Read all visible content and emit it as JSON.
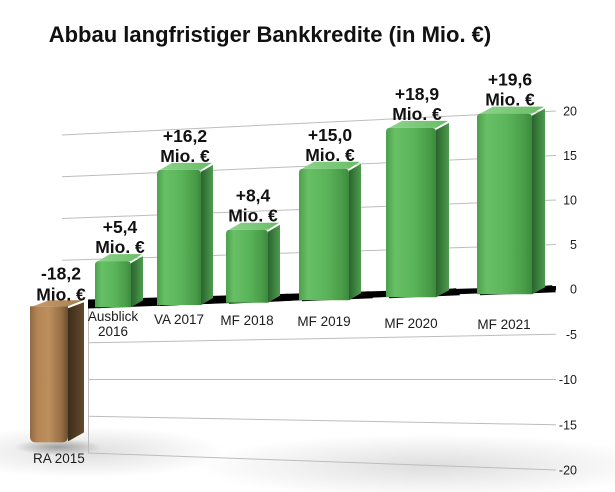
{
  "title": "Abbau langfristiger Bankkredite (in Mio. €)",
  "chart_data": {
    "type": "bar",
    "title": "Abbau langfristiger Bankkredite (in Mio. €)",
    "unit_suffix": "Mio. €",
    "categories": [
      "RA 2015",
      "Ausblick 2016",
      "VA 2017",
      "MF 2018",
      "MF 2019",
      "MF 2020",
      "MF 2021"
    ],
    "category_lines": [
      [
        "RA 2015"
      ],
      [
        "Ausblick",
        "2016"
      ],
      [
        "VA 2017"
      ],
      [
        "MF 2018"
      ],
      [
        "MF 2019"
      ],
      [
        "MF 2020"
      ],
      [
        "MF 2021"
      ]
    ],
    "values": [
      -18.2,
      5.4,
      16.2,
      8.4,
      15.0,
      18.9,
      19.6
    ],
    "value_labels": [
      [
        "-18,2",
        "Mio. €"
      ],
      [
        "+5,4",
        "Mio. €"
      ],
      [
        "+16,2",
        "Mio. €"
      ],
      [
        "+8,4",
        "Mio. €"
      ],
      [
        "+15,0",
        "Mio. €"
      ],
      [
        "+18,9",
        "Mio. €"
      ],
      [
        "+19,6",
        "Mio. €"
      ]
    ],
    "yticks": [
      20,
      15,
      10,
      5,
      0,
      -5,
      -10,
      -15,
      -20
    ],
    "ylim": [
      -20,
      22
    ],
    "grid": true,
    "legend": false,
    "y_axis_side": "right",
    "style": "3d-extruded",
    "colors": {
      "positive_bar": "#5cb55c",
      "negative_bar": "#b58754",
      "baseline": "#000000",
      "gridline": "#bdbdbd",
      "text": "#111111",
      "background": "#ffffff"
    }
  }
}
